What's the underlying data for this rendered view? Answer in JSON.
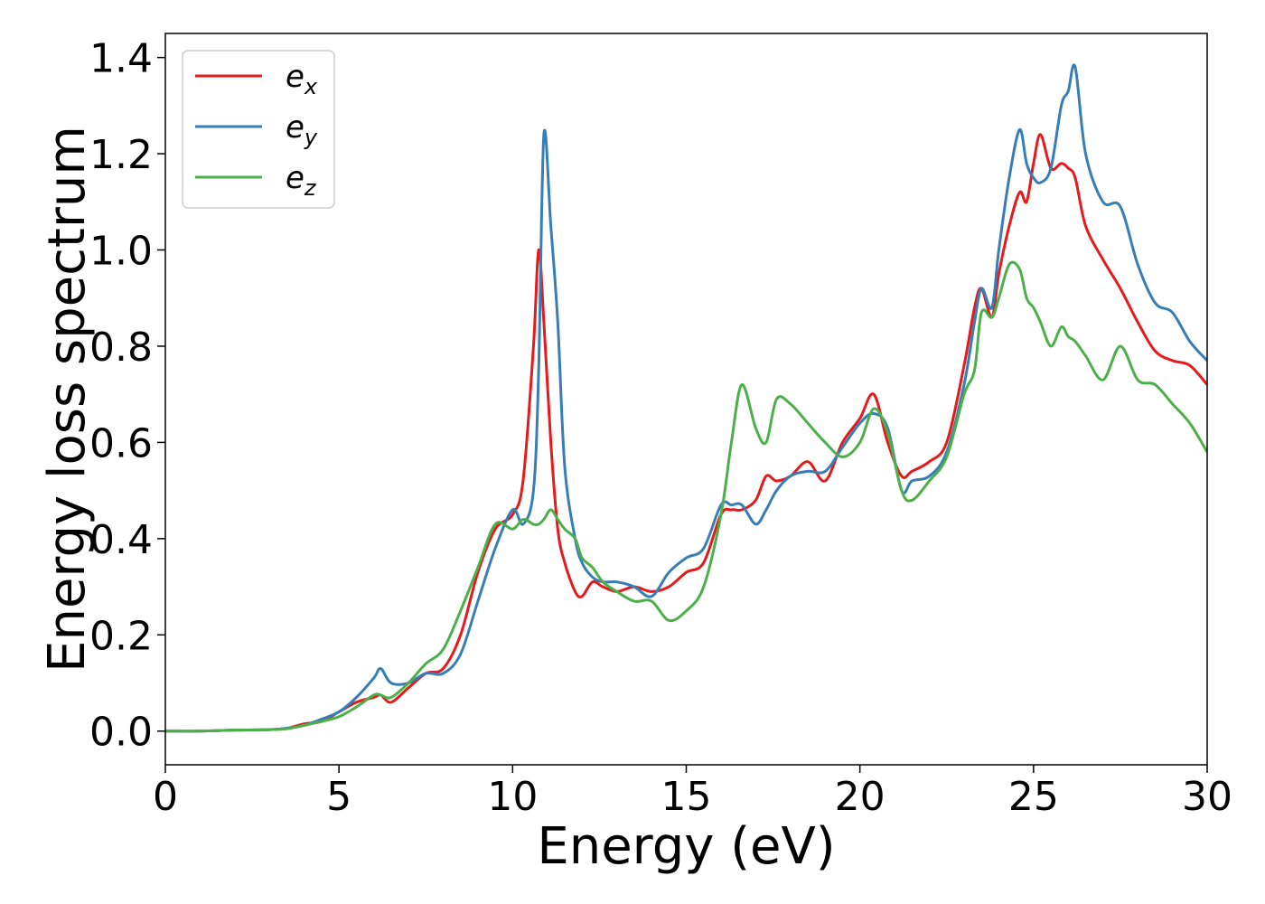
{
  "chart_data": {
    "type": "line",
    "title": "",
    "xlabel": "Energy (eV)",
    "ylabel": "Energy loss spectrum",
    "xlim": [
      0,
      30
    ],
    "ylim": [
      -0.07,
      1.45
    ],
    "xticks": [
      0,
      5,
      10,
      15,
      20,
      25,
      30
    ],
    "xtick_labels": [
      "0",
      "5",
      "10",
      "15",
      "20",
      "25",
      "30"
    ],
    "yticks": [
      0.0,
      0.2,
      0.4,
      0.6,
      0.8,
      1.0,
      1.2,
      1.4
    ],
    "ytick_labels": [
      "0.0",
      "0.2",
      "0.4",
      "0.6",
      "0.8",
      "1.0",
      "1.2",
      "1.4"
    ],
    "grid": false,
    "legend_position": "top-left",
    "x": [
      0,
      1,
      2,
      3,
      3.5,
      4,
      4.5,
      5,
      5.5,
      6,
      6.2,
      6.5,
      7,
      7.5,
      8,
      8.5,
      9,
      9.5,
      10,
      10.3,
      10.6,
      10.75,
      10.9,
      11.1,
      11.3,
      11.5,
      11.8,
      12,
      12.3,
      12.6,
      13,
      13.5,
      14,
      14.5,
      15,
      15.5,
      16,
      16.3,
      16.6,
      17,
      17.3,
      17.6,
      18,
      18.5,
      19,
      19.5,
      20,
      20.4,
      20.8,
      21.2,
      21.5,
      22,
      22.5,
      23,
      23.3,
      23.5,
      23.8,
      24,
      24.3,
      24.6,
      24.8,
      25,
      25.2,
      25.5,
      25.8,
      26,
      26.2,
      26.5,
      27,
      27.5,
      28,
      28.5,
      29,
      29.5,
      30
    ],
    "series": [
      {
        "name": "e_x",
        "legend_base": "e",
        "legend_sub": "x",
        "color": "#e41a1c",
        "values": [
          0,
          0,
          0.002,
          0.003,
          0.006,
          0.015,
          0.02,
          0.04,
          0.06,
          0.07,
          0.075,
          0.06,
          0.09,
          0.12,
          0.13,
          0.2,
          0.33,
          0.42,
          0.45,
          0.52,
          0.8,
          1.0,
          0.85,
          0.6,
          0.42,
          0.35,
          0.29,
          0.28,
          0.31,
          0.3,
          0.29,
          0.3,
          0.29,
          0.3,
          0.33,
          0.35,
          0.45,
          0.46,
          0.46,
          0.48,
          0.53,
          0.52,
          0.53,
          0.56,
          0.52,
          0.6,
          0.65,
          0.7,
          0.6,
          0.53,
          0.54,
          0.56,
          0.6,
          0.76,
          0.88,
          0.92,
          0.86,
          0.95,
          1.05,
          1.12,
          1.1,
          1.18,
          1.24,
          1.17,
          1.18,
          1.17,
          1.15,
          1.05,
          0.98,
          0.92,
          0.85,
          0.79,
          0.77,
          0.76,
          0.72
        ]
      },
      {
        "name": "e_y",
        "legend_base": "e",
        "legend_sub": "y",
        "color": "#377eb8",
        "values": [
          0,
          0,
          0.002,
          0.003,
          0.006,
          0.012,
          0.025,
          0.04,
          0.07,
          0.11,
          0.13,
          0.1,
          0.1,
          0.12,
          0.12,
          0.16,
          0.27,
          0.38,
          0.46,
          0.43,
          0.5,
          0.75,
          1.24,
          1.05,
          0.85,
          0.55,
          0.4,
          0.35,
          0.32,
          0.31,
          0.31,
          0.3,
          0.28,
          0.33,
          0.36,
          0.38,
          0.47,
          0.47,
          0.47,
          0.43,
          0.46,
          0.5,
          0.53,
          0.54,
          0.54,
          0.59,
          0.64,
          0.66,
          0.63,
          0.5,
          0.52,
          0.53,
          0.58,
          0.72,
          0.85,
          0.92,
          0.88,
          1.0,
          1.15,
          1.25,
          1.18,
          1.15,
          1.14,
          1.17,
          1.3,
          1.33,
          1.38,
          1.2,
          1.1,
          1.09,
          0.97,
          0.89,
          0.87,
          0.81,
          0.77
        ]
      },
      {
        "name": "e_z",
        "legend_base": "e",
        "legend_sub": "z",
        "color": "#4daf4a",
        "values": [
          0,
          0,
          0.002,
          0.003,
          0.005,
          0.012,
          0.02,
          0.03,
          0.05,
          0.075,
          0.075,
          0.07,
          0.1,
          0.14,
          0.17,
          0.25,
          0.34,
          0.43,
          0.42,
          0.44,
          0.43,
          0.43,
          0.44,
          0.46,
          0.44,
          0.42,
          0.4,
          0.36,
          0.34,
          0.31,
          0.29,
          0.27,
          0.27,
          0.23,
          0.25,
          0.3,
          0.45,
          0.6,
          0.72,
          0.63,
          0.6,
          0.69,
          0.68,
          0.64,
          0.6,
          0.57,
          0.6,
          0.67,
          0.62,
          0.5,
          0.48,
          0.52,
          0.57,
          0.7,
          0.75,
          0.87,
          0.86,
          0.9,
          0.97,
          0.96,
          0.9,
          0.88,
          0.85,
          0.8,
          0.84,
          0.82,
          0.81,
          0.78,
          0.73,
          0.8,
          0.73,
          0.72,
          0.68,
          0.64,
          0.58
        ]
      }
    ]
  }
}
